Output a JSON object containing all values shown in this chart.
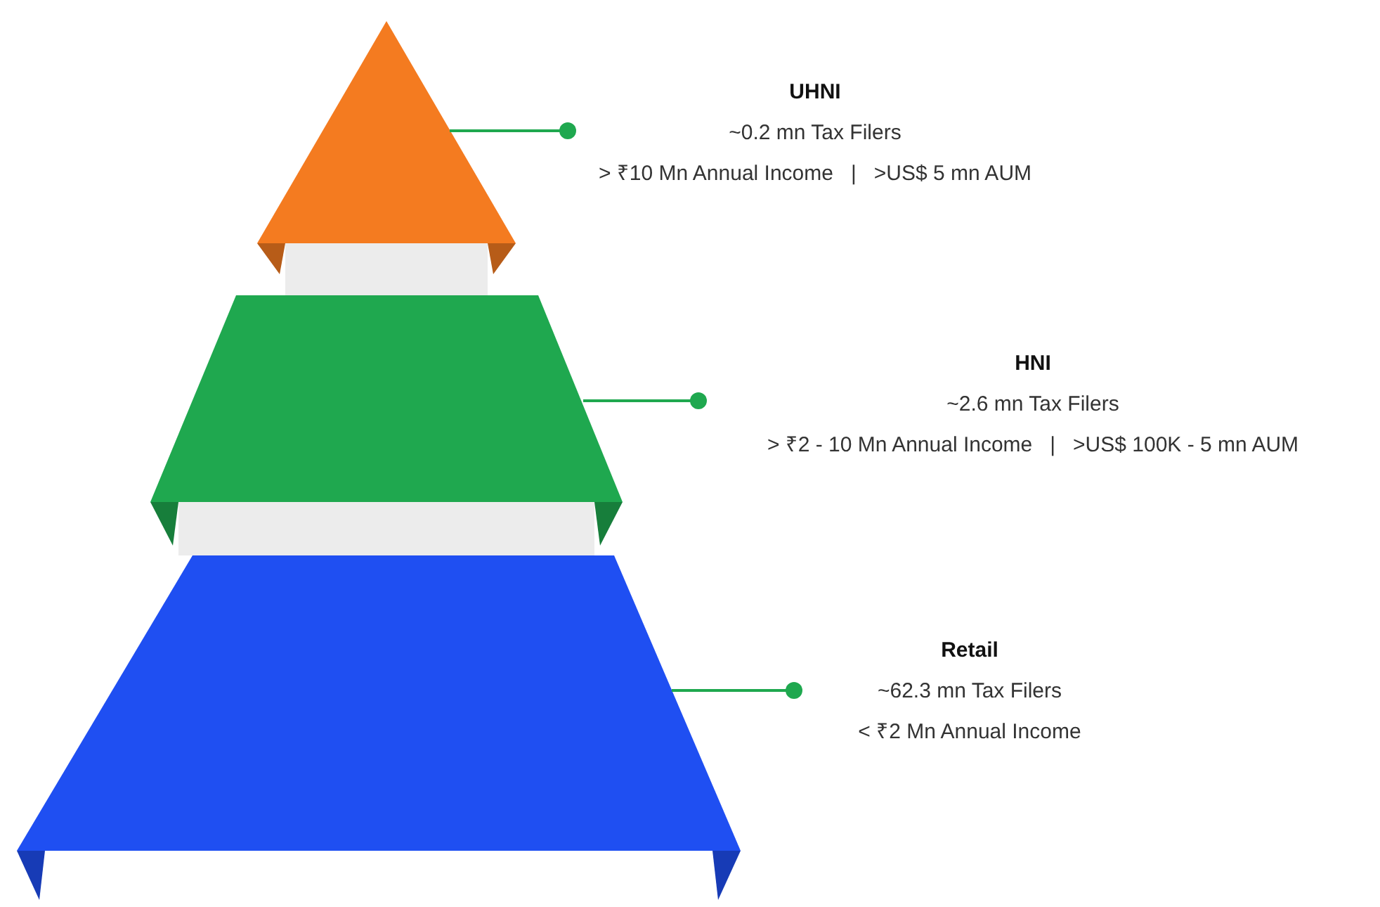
{
  "chart_data": {
    "type": "other",
    "categories": [
      "UHNI",
      "HNI",
      "Retail"
    ],
    "values": [
      0.2,
      2.6,
      62.3
    ],
    "value_labels": [
      "~0.2 mn Tax Filers",
      "~2.6 mn Tax Filers",
      "~62.3 mn Tax Filers"
    ],
    "colors": [
      "#f47b20",
      "#1fa84f",
      "#1f4ff2"
    ],
    "annotations": [
      "> ₹10 Mn Annual Income   |   >US$ 5 mn AUM",
      "> ₹2 - 10 Mn Annual Income   |   >US$ 100K - 5 mn AUM",
      "< ₹2 Mn Annual Income"
    ]
  }
}
